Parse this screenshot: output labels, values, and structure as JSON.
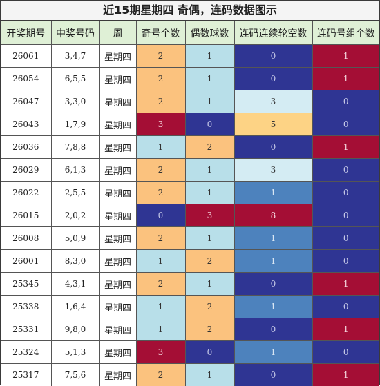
{
  "title": "近15期星期四 奇偶，连码数据图示",
  "headers": [
    "开奖期号",
    "中奖号码",
    "周",
    "奇号个数",
    "偶数球数",
    "连码连续轮空数",
    "连码号组个数"
  ],
  "colors": {
    "orange": "#fbc27e",
    "light": "#b8dfe9",
    "red": "#a40e35",
    "navy": "#2f3593",
    "steel": "#4d82bd",
    "pale": "#d4ecf3",
    "peach": "#fdd385",
    "header": "#dff0d6"
  },
  "rows": [
    {
      "issue": "26061",
      "numbers": "3,4,7",
      "week": "星期四",
      "odd": "2",
      "even": "1",
      "gap": "0",
      "groups": "1"
    },
    {
      "issue": "26054",
      "numbers": "6,5,5",
      "week": "星期四",
      "odd": "2",
      "even": "1",
      "gap": "0",
      "groups": "1"
    },
    {
      "issue": "26047",
      "numbers": "3,3,0",
      "week": "星期四",
      "odd": "2",
      "even": "1",
      "gap": "3",
      "groups": "0"
    },
    {
      "issue": "26043",
      "numbers": "1,7,9",
      "week": "星期四",
      "odd": "3",
      "even": "0",
      "gap": "5",
      "groups": "0"
    },
    {
      "issue": "26036",
      "numbers": "7,8,8",
      "week": "星期四",
      "odd": "1",
      "even": "2",
      "gap": "0",
      "groups": "1"
    },
    {
      "issue": "26029",
      "numbers": "6,1,3",
      "week": "星期四",
      "odd": "2",
      "even": "1",
      "gap": "3",
      "groups": "0"
    },
    {
      "issue": "26022",
      "numbers": "2,5,5",
      "week": "星期四",
      "odd": "2",
      "even": "1",
      "gap": "1",
      "groups": "0"
    },
    {
      "issue": "26015",
      "numbers": "2,0,2",
      "week": "星期四",
      "odd": "0",
      "even": "3",
      "gap": "8",
      "groups": "0"
    },
    {
      "issue": "26008",
      "numbers": "5,0,9",
      "week": "星期四",
      "odd": "2",
      "even": "1",
      "gap": "1",
      "groups": "0"
    },
    {
      "issue": "26001",
      "numbers": "8,3,0",
      "week": "星期四",
      "odd": "1",
      "even": "2",
      "gap": "1",
      "groups": "0"
    },
    {
      "issue": "25345",
      "numbers": "4,3,1",
      "week": "星期四",
      "odd": "2",
      "even": "1",
      "gap": "0",
      "groups": "1"
    },
    {
      "issue": "25338",
      "numbers": "1,6,4",
      "week": "星期四",
      "odd": "1",
      "even": "2",
      "gap": "1",
      "groups": "0"
    },
    {
      "issue": "25331",
      "numbers": "9,8,0",
      "week": "星期四",
      "odd": "1",
      "even": "2",
      "gap": "0",
      "groups": "1"
    },
    {
      "issue": "25324",
      "numbers": "5,1,3",
      "week": "星期四",
      "odd": "3",
      "even": "0",
      "gap": "1",
      "groups": "0"
    },
    {
      "issue": "25317",
      "numbers": "7,5,6",
      "week": "星期四",
      "odd": "2",
      "even": "1",
      "gap": "0",
      "groups": "1"
    }
  ]
}
